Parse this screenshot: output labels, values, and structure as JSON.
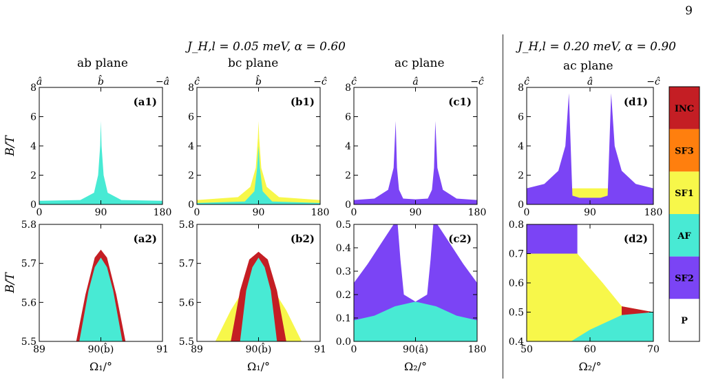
{
  "page_number": "9",
  "group_titles": [
    {
      "label": "J_H,l = 0.05 meV, α = 0.60"
    },
    {
      "label": "J_H,l = 0.20 meV, α = 0.90"
    }
  ],
  "legend": {
    "items": [
      {
        "label": "INC",
        "color": "#c41e24"
      },
      {
        "label": "SF3",
        "color": "#ff7f0e"
      },
      {
        "label": "SF1",
        "color": "#f7f74a"
      },
      {
        "label": "AF",
        "color": "#48ead4"
      },
      {
        "label": "SF2",
        "color": "#7b44f5"
      },
      {
        "label": "P",
        "color": "#ffffff"
      }
    ]
  },
  "chart_data": [
    {
      "id": "a1",
      "type": "area",
      "panel_label": "(a1)",
      "title": "ab plane",
      "xlabel": "",
      "ylabel": "B/T",
      "xlim": [
        0,
        180
      ],
      "ylim": [
        0,
        8
      ],
      "xticks": [
        "0",
        "90",
        "180"
      ],
      "yticks": [
        "0",
        "2",
        "4",
        "6",
        "8"
      ],
      "top_ticks": [
        "â",
        "b̂",
        "−â"
      ],
      "regions": [
        {
          "phase": "AF",
          "x": [
            0,
            60,
            80,
            86,
            89,
            90,
            91,
            94,
            100,
            120,
            180
          ],
          "y": [
            0.25,
            0.3,
            0.8,
            2.0,
            4.0,
            5.7,
            4.0,
            2.0,
            0.8,
            0.3,
            0.25
          ]
        }
      ]
    },
    {
      "id": "b1",
      "type": "area",
      "panel_label": "(b1)",
      "title": "bc plane",
      "xlabel": "",
      "ylabel": "",
      "xlim": [
        0,
        180
      ],
      "ylim": [
        0,
        8
      ],
      "xticks": [
        "0",
        "90",
        "180"
      ],
      "yticks": [
        "0",
        "2",
        "4",
        "6",
        "8"
      ],
      "top_ticks": [
        "ĉ",
        "b̂",
        "−ĉ"
      ],
      "regions": [
        {
          "phase": "SF1",
          "x": [
            0,
            60,
            78,
            86,
            89,
            90,
            91,
            94,
            102,
            120,
            180
          ],
          "y": [
            0.3,
            0.5,
            1.2,
            2.5,
            4.5,
            5.7,
            4.5,
            2.5,
            1.2,
            0.5,
            0.3
          ]
        },
        {
          "phase": "AF",
          "x": [
            0,
            70,
            84,
            88,
            90,
            92,
            96,
            110,
            180
          ],
          "y": [
            0.1,
            0.2,
            0.9,
            2.5,
            4.0,
            2.5,
            0.9,
            0.2,
            0.1
          ]
        }
      ]
    },
    {
      "id": "c1",
      "type": "area",
      "panel_label": "(c1)",
      "title": "ac plane",
      "xlabel": "",
      "ylabel": "",
      "xlim": [
        0,
        180
      ],
      "ylim": [
        0,
        8
      ],
      "xticks": [
        "0",
        "90",
        "180"
      ],
      "yticks": [
        "0",
        "2",
        "4",
        "6",
        "8"
      ],
      "top_ticks": [
        "ĉ",
        "â",
        "−ĉ"
      ],
      "regions": [
        {
          "phase": "SF1",
          "x": [
            0,
            180
          ],
          "y": [
            0.25,
            0.25
          ]
        },
        {
          "phase": "SF2",
          "x": [
            0,
            30,
            50,
            58,
            61,
            63,
            66,
            72,
            90,
            108,
            114,
            117,
            119,
            122,
            130,
            150,
            180
          ],
          "y": [
            0.3,
            0.4,
            1.0,
            2.5,
            5.7,
            2.5,
            1.0,
            0.4,
            0.35,
            0.4,
            1.0,
            2.5,
            5.7,
            2.5,
            1.0,
            0.4,
            0.3
          ]
        }
      ]
    },
    {
      "id": "d1",
      "type": "area",
      "panel_label": "(d1)",
      "title": "ac plane",
      "xlabel": "",
      "ylabel": "",
      "xlim": [
        0,
        180
      ],
      "ylim": [
        0,
        8
      ],
      "xticks": [
        "0",
        "90",
        "180"
      ],
      "yticks": [
        "0",
        "2",
        "4",
        "6",
        "8"
      ],
      "top_ticks": [
        "ĉ",
        "â",
        "−ĉ"
      ],
      "regions": [
        {
          "phase": "SF1",
          "x": [
            0,
            180
          ],
          "y": [
            1.1,
            1.1
          ]
        },
        {
          "phase": "AF",
          "x": [
            0,
            50,
            90,
            130,
            180
          ],
          "y": [
            0.3,
            0.35,
            0.4,
            0.35,
            0.3
          ]
        },
        {
          "phase": "SF2",
          "x": [
            0,
            25,
            45,
            55,
            60,
            65,
            75,
            90,
            105,
            115,
            120,
            125,
            135,
            155,
            180
          ],
          "y": [
            1.1,
            1.4,
            2.3,
            4.0,
            7.6,
            0.6,
            0.45,
            0.45,
            0.45,
            0.6,
            7.6,
            4.0,
            2.3,
            1.4,
            1.1
          ]
        }
      ]
    },
    {
      "id": "a2",
      "type": "area",
      "panel_label": "(a2)",
      "title": "",
      "xlabel": "Ω₁/°",
      "ylabel": "B/T",
      "xlim": [
        89,
        91
      ],
      "ylim": [
        5.5,
        5.8
      ],
      "xticks": [
        "89",
        "90(b̂)",
        "91"
      ],
      "yticks": [
        "5.5",
        "5.6",
        "5.7",
        "5.8"
      ],
      "regions": [
        {
          "phase": "INC",
          "x": [
            89.6,
            89.75,
            89.9,
            90.0,
            90.1,
            90.25,
            90.4
          ],
          "y": [
            5.5,
            5.62,
            5.715,
            5.735,
            5.715,
            5.62,
            5.5
          ]
        },
        {
          "phase": "AF",
          "x": [
            89.65,
            89.8,
            89.9,
            90.0,
            90.1,
            90.2,
            90.35
          ],
          "y": [
            5.5,
            5.63,
            5.69,
            5.715,
            5.69,
            5.63,
            5.5
          ]
        }
      ]
    },
    {
      "id": "b2",
      "type": "area",
      "panel_label": "(b2)",
      "title": "",
      "xlabel": "Ω₁/°",
      "ylabel": "",
      "xlim": [
        89,
        91
      ],
      "ylim": [
        5.5,
        5.8
      ],
      "xticks": [
        "89",
        "90(b̂)",
        "91"
      ],
      "yticks": [
        "5.5",
        "5.6",
        "5.7",
        "5.8"
      ],
      "regions": [
        {
          "phase": "SF1",
          "x": [
            89.3,
            89.55,
            89.75,
            90.0,
            90.25,
            90.45,
            90.7
          ],
          "y": [
            5.5,
            5.58,
            5.63,
            5.65,
            5.63,
            5.58,
            5.5
          ]
        },
        {
          "phase": "INC",
          "x": [
            89.55,
            89.7,
            89.85,
            90.0,
            90.15,
            90.3,
            90.45
          ],
          "y": [
            5.5,
            5.63,
            5.71,
            5.73,
            5.71,
            5.63,
            5.5
          ]
        },
        {
          "phase": "AF",
          "x": [
            89.7,
            89.8,
            89.9,
            90.0,
            90.1,
            90.2,
            90.3
          ],
          "y": [
            5.5,
            5.63,
            5.69,
            5.715,
            5.69,
            5.63,
            5.5
          ]
        }
      ]
    },
    {
      "id": "c2",
      "type": "area",
      "panel_label": "(c2)",
      "title": "",
      "xlabel": "Ω₂/°",
      "ylabel": "",
      "xlim": [
        0,
        180
      ],
      "ylim": [
        0,
        0.5
      ],
      "xticks": [
        "0",
        "90(â)",
        "180"
      ],
      "yticks": [
        "0.0",
        "0.1",
        "0.2",
        "0.3",
        "0.4",
        "0.5"
      ],
      "regions": [
        {
          "phase": "SF1",
          "x": [
            0,
            30,
            60,
            90,
            120,
            150,
            180
          ],
          "y": [
            0.24,
            0.2,
            0.18,
            0.17,
            0.18,
            0.2,
            0.24
          ]
        },
        {
          "phase": "SF2",
          "x": [
            0,
            20,
            40,
            58,
            64,
            68,
            73,
            90,
            107,
            112,
            116,
            122,
            140,
            160,
            180
          ],
          "y": [
            0.25,
            0.33,
            0.42,
            0.5,
            0.5,
            0.35,
            0.2,
            0.17,
            0.2,
            0.35,
            0.5,
            0.5,
            0.42,
            0.33,
            0.25
          ]
        },
        {
          "phase": "AF",
          "x": [
            0,
            30,
            60,
            90,
            120,
            150,
            180
          ],
          "y": [
            0.09,
            0.11,
            0.15,
            0.17,
            0.15,
            0.11,
            0.09
          ]
        }
      ]
    },
    {
      "id": "d2",
      "type": "area",
      "panel_label": "(d2)",
      "title": "",
      "xlabel": "Ω₂/°",
      "ylabel": "",
      "xlim": [
        50,
        70
      ],
      "ylim": [
        0.4,
        0.8
      ],
      "xticks": [
        "50",
        "60",
        "70"
      ],
      "yticks": [
        "0.4",
        "0.5",
        "0.6",
        "0.7",
        "0.8"
      ],
      "regions": [
        {
          "phase": "SF2",
          "x": [
            50,
            58
          ],
          "y": [
            0.8,
            0.8
          ]
        },
        {
          "phase": "SF1",
          "x": [
            50,
            58,
            62,
            65,
            70
          ],
          "y": [
            0.7,
            0.7,
            0.6,
            0.52,
            0.5
          ]
        },
        {
          "phase": "INC",
          "x": [
            65,
            70
          ],
          "y": [
            0.52,
            0.5
          ]
        },
        {
          "phase": "AF",
          "x": [
            57,
            60,
            65,
            70
          ],
          "y": [
            0.4,
            0.44,
            0.49,
            0.5
          ]
        }
      ]
    }
  ]
}
